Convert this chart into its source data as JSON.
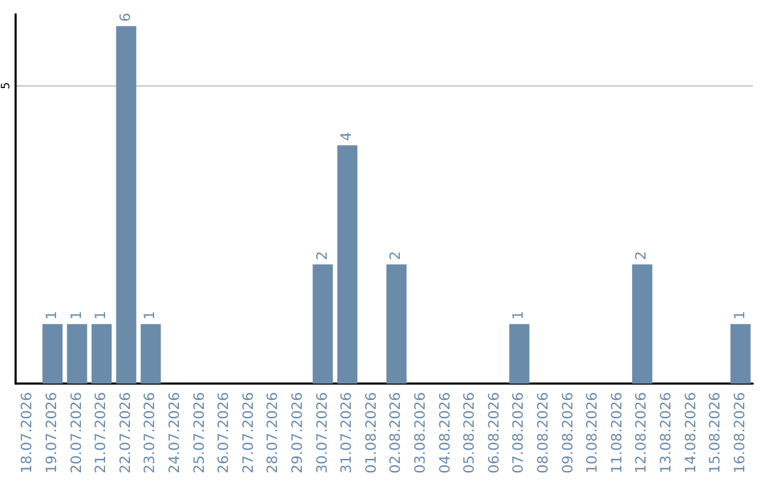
{
  "chart_data": {
    "type": "bar",
    "categories": [
      "18.07.2026",
      "19.07.2026",
      "20.07.2026",
      "21.07.2026",
      "22.07.2026",
      "23.07.2026",
      "24.07.2026",
      "25.07.2026",
      "26.07.2026",
      "27.07.2026",
      "28.07.2026",
      "29.07.2026",
      "30.07.2026",
      "31.07.2026",
      "01.08.2026",
      "02.08.2026",
      "03.08.2026",
      "04.08.2026",
      "05.08.2026",
      "06.08.2026",
      "07.08.2026",
      "08.08.2026",
      "09.08.2026",
      "10.08.2026",
      "11.08.2026",
      "12.08.2026",
      "13.08.2026",
      "14.08.2026",
      "15.08.2026",
      "16.08.2026"
    ],
    "values": [
      0,
      1,
      1,
      1,
      6,
      1,
      0,
      0,
      0,
      0,
      0,
      0,
      2,
      4,
      0,
      2,
      0,
      0,
      0,
      0,
      1,
      0,
      0,
      0,
      0,
      2,
      0,
      0,
      0,
      1
    ],
    "value_labels": [
      null,
      "1",
      "1",
      "1",
      "6",
      "1",
      null,
      null,
      null,
      null,
      null,
      null,
      "2",
      "4",
      null,
      "2",
      null,
      null,
      null,
      null,
      "1",
      null,
      null,
      null,
      null,
      "2",
      null,
      null,
      null,
      "1"
    ],
    "color": "#6b8bab",
    "ylim": [
      0,
      6.2
    ],
    "yticks": [
      5
    ],
    "grid": "y"
  }
}
